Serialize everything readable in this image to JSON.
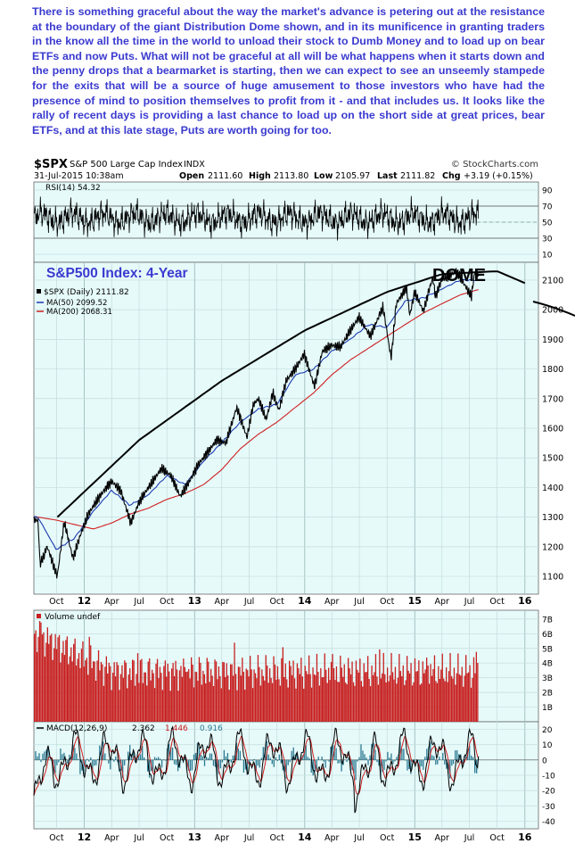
{
  "commentary": "There is something graceful about the way the market's advance is petering out at the resistance at the boundary of the giant Distribution Dome shown, and in its munificence in granting traders in the know all the time in the world to unload their stock to Dumb Money and to load up on bear ETFs and now Puts. What will not be graceful at all will be what happens when it starts down and the penny drops that a bearmarket is starting, then we can expect to see an unseemly stampede for the exits that will be a source of huge amusement to those investors who have had the presence of mind to position themselves to profit from it - and that includes us. It looks like the rally of recent days is providing a last chance to load up on the short side at great prices, bear ETFs, and at this late stage, Puts are worth going for too.",
  "colors": {
    "panel_bg": "#e6fafa",
    "price": "#000000",
    "ma50": "#1a3bb0",
    "ma200": "#d02020",
    "volume": "#c81e1e",
    "macd_hist": "#2a7a92",
    "annotation_title": "#3a3ad0",
    "commentary": "#3a3ad0"
  },
  "header": {
    "symbol": "$SPX",
    "name": "S&P 500 Large Cap Index",
    "exchange": "INDX",
    "date": "31-Jul-2015 10:38am",
    "open_label": "Open",
    "open": "2111.60",
    "high_label": "High",
    "high": "2113.80",
    "low_label": "Low",
    "low": "2105.97",
    "last_label": "Last",
    "last": "2111.82",
    "chg_label": "Chg",
    "chg": "+3.19 (+0.15%)",
    "credit": "© StockCharts.com"
  },
  "chart_data": [
    {
      "type": "line",
      "panel": "rsi",
      "legend": "RSI(14) 54.32",
      "ylim": [
        0,
        100
      ],
      "y_ticks": [
        "90",
        "70",
        "50",
        "30",
        "10"
      ],
      "reference_lines": [
        70,
        50,
        30
      ],
      "last_value": 54.32
    },
    {
      "type": "line",
      "panel": "price",
      "title": "S&P500 Index: 4-Year",
      "annotation": "DOME",
      "ylim": [
        1040,
        2160
      ],
      "y_ticks": [
        "2100",
        "2000",
        "1900",
        "1800",
        "1700",
        "1600",
        "1500",
        "1400",
        "1300",
        "1200",
        "1100"
      ],
      "x_ticks": [
        "Oct",
        "12",
        "Apr",
        "Jul",
        "Oct",
        "13",
        "Apr",
        "Jul",
        "Oct",
        "14",
        "Apr",
        "Jul",
        "Oct",
        "15",
        "Apr",
        "Jul",
        "Oct",
        "16"
      ],
      "legend": [
        "$SPX (Daily) 2111.82",
        "MA(50) 2099.52",
        "MA(200) 2068.31"
      ],
      "series": [
        {
          "name": "$SPX (Daily)",
          "color": "#000000",
          "dates": [
            "2011-08-01",
            "2011-08-08",
            "2011-09-01",
            "2011-10-04",
            "2011-10-27",
            "2011-11-25",
            "2011-12-20",
            "2012-01-15",
            "2012-02-15",
            "2012-03-15",
            "2012-04-02",
            "2012-05-01",
            "2012-06-04",
            "2012-07-01",
            "2012-08-01",
            "2012-09-14",
            "2012-10-15",
            "2012-11-15",
            "2012-12-15",
            "2013-01-15",
            "2013-02-15",
            "2013-03-15",
            "2013-04-15",
            "2013-05-21",
            "2013-06-24",
            "2013-07-15",
            "2013-08-01",
            "2013-08-27",
            "2013-09-18",
            "2013-10-08",
            "2013-11-01",
            "2013-12-01",
            "2013-12-31",
            "2014-02-03",
            "2014-03-01",
            "2014-04-01",
            "2014-05-01",
            "2014-06-01",
            "2014-07-01",
            "2014-08-07",
            "2014-09-18",
            "2014-10-15",
            "2014-11-01",
            "2014-12-05",
            "2014-12-16",
            "2015-01-01",
            "2015-01-30",
            "2015-03-02",
            "2015-03-11",
            "2015-04-01",
            "2015-05-20",
            "2015-06-15",
            "2015-07-08",
            "2015-07-20",
            "2015-07-31"
          ],
          "values": [
            1290,
            1140,
            1200,
            1100,
            1285,
            1160,
            1240,
            1310,
            1360,
            1400,
            1420,
            1390,
            1280,
            1350,
            1400,
            1465,
            1440,
            1370,
            1420,
            1480,
            1520,
            1560,
            1550,
            1670,
            1570,
            1680,
            1700,
            1630,
            1720,
            1660,
            1760,
            1800,
            1850,
            1740,
            1860,
            1880,
            1875,
            1930,
            1975,
            1910,
            2010,
            1835,
            2020,
            2075,
            1980,
            2060,
            1995,
            2110,
            2045,
            2100,
            2130,
            2085,
            2045,
            2130,
            2112
          ]
        },
        {
          "name": "MA(50)",
          "color": "#1a3bb0",
          "dates": [
            "2011-08-01",
            "2011-10-01",
            "2011-12-01",
            "2012-02-01",
            "2012-04-01",
            "2012-06-01",
            "2012-08-01",
            "2012-10-01",
            "2012-12-01",
            "2013-02-01",
            "2013-04-01",
            "2013-06-01",
            "2013-08-01",
            "2013-10-01",
            "2013-12-01",
            "2014-02-01",
            "2014-04-01",
            "2014-06-01",
            "2014-08-01",
            "2014-10-01",
            "2014-12-01",
            "2015-02-01",
            "2015-04-01",
            "2015-06-01",
            "2015-07-31"
          ],
          "values": [
            1300,
            1190,
            1230,
            1320,
            1390,
            1340,
            1375,
            1440,
            1410,
            1490,
            1550,
            1620,
            1665,
            1680,
            1780,
            1800,
            1860,
            1900,
            1950,
            1940,
            2030,
            2040,
            2070,
            2100,
            2100
          ]
        },
        {
          "name": "MA(200)",
          "color": "#d02020",
          "dates": [
            "2011-08-01",
            "2011-10-01",
            "2011-12-01",
            "2012-02-01",
            "2012-04-01",
            "2012-06-01",
            "2012-08-01",
            "2012-10-01",
            "2012-12-01",
            "2013-02-01",
            "2013-04-01",
            "2013-06-01",
            "2013-08-01",
            "2013-10-01",
            "2013-12-01",
            "2014-02-01",
            "2014-04-01",
            "2014-06-01",
            "2014-08-01",
            "2014-10-01",
            "2014-12-01",
            "2015-02-01",
            "2015-04-01",
            "2015-06-01",
            "2015-07-31"
          ],
          "values": [
            1300,
            1290,
            1275,
            1260,
            1280,
            1310,
            1330,
            1360,
            1380,
            1410,
            1460,
            1530,
            1580,
            1620,
            1670,
            1720,
            1780,
            1830,
            1870,
            1910,
            1950,
            1990,
            2020,
            2050,
            2068
          ]
        }
      ],
      "dome": {
        "name": "Dome",
        "dates": [
          "2011-10-04",
          "2012-07-01",
          "2013-04-01",
          "2014-01-01",
          "2014-10-01",
          "2015-04-01",
          "2015-10-01",
          "2016-01-01"
        ],
        "values": [
          1300,
          1560,
          1760,
          1930,
          2060,
          2120,
          2130,
          2090
        ]
      }
    },
    {
      "type": "bar",
      "panel": "volume",
      "legend": "Volume undef",
      "ylim": [
        0,
        7.6
      ],
      "y_ticks": [
        "7B",
        "6B",
        "5B",
        "4B",
        "3B",
        "2B",
        "1B"
      ],
      "color": "#c81e1e"
    },
    {
      "type": "line",
      "panel": "macd",
      "legend": [
        "MACD(12,26,9)",
        "2.362",
        "1.446",
        "0.916"
      ],
      "legend_colors": [
        "#000000",
        "#d02020",
        "#2a7a92"
      ],
      "ylim": [
        -45,
        25
      ],
      "y_ticks": [
        "20",
        "10",
        "0",
        "-10",
        "-20",
        "-30",
        "-40"
      ]
    }
  ]
}
